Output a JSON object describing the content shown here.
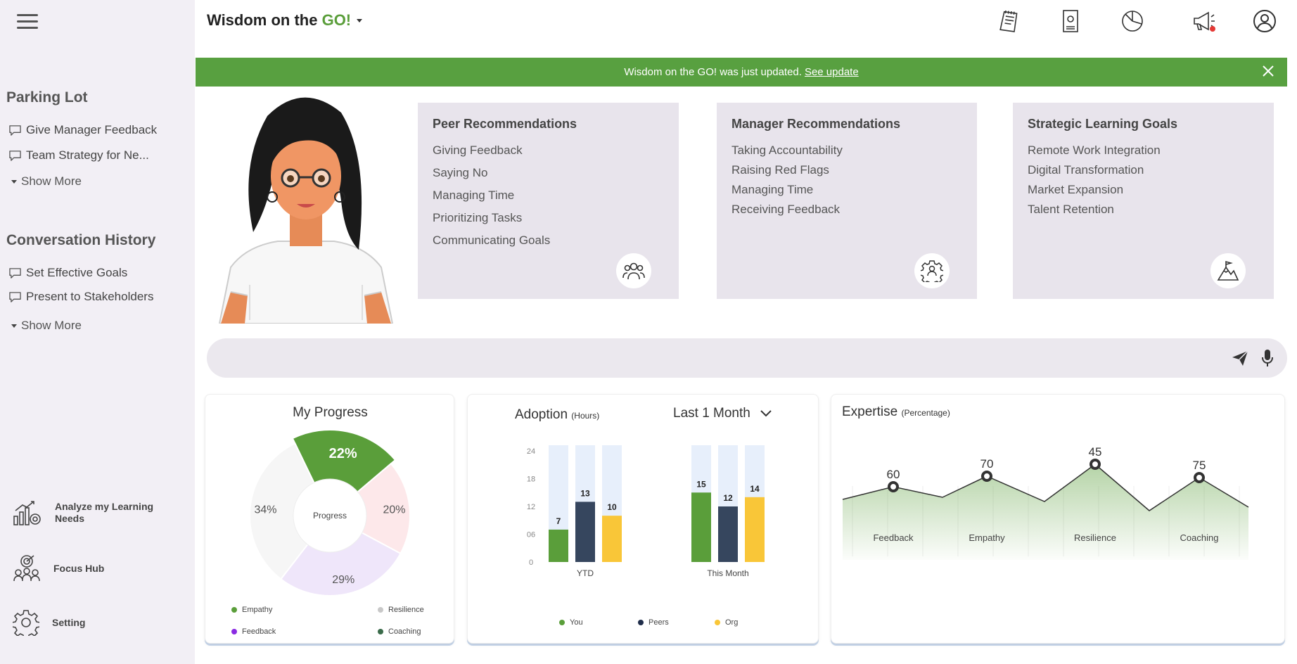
{
  "brand": {
    "prefix": "Wisdom on the ",
    "go": "GO!"
  },
  "banner": {
    "message": "Wisdom on the GO! was just updated.",
    "link": "See update"
  },
  "sidebar": {
    "parking_lot": {
      "title": "Parking Lot",
      "items": [
        "Give Manager Feedback",
        "Team Strategy for Ne..."
      ],
      "show_more": "Show More"
    },
    "history": {
      "title": "Conversation History",
      "items": [
        "Set Effective Goals",
        "Present to Stakeholders"
      ],
      "show_more": "Show More"
    },
    "tools": [
      {
        "label": "Analyze my  Learning Needs",
        "icon": "analyze-icon"
      },
      {
        "label": "Focus Hub",
        "icon": "focus-hub-icon"
      },
      {
        "label": "Setting",
        "icon": "gear-icon"
      }
    ]
  },
  "top_icons": [
    "notepad-icon",
    "document-icon",
    "pie-chart-icon",
    "megaphone-icon",
    "user-profile-icon"
  ],
  "cards": [
    {
      "title": "Peer Recommendations",
      "items": [
        "Giving Feedback",
        "Saying No",
        "Managing Time",
        "Prioritizing Tasks",
        "Communicating Goals"
      ],
      "icon": "peers-icon"
    },
    {
      "title": "Manager Recommendations",
      "items": [
        "Taking Accountability",
        "Raising Red Flags",
        "Managing Time",
        "Receiving Feedback"
      ],
      "icon": "manager-gear-icon"
    },
    {
      "title": "Strategic Learning Goals",
      "items": [
        "Remote Work Integration",
        "Digital Transformation",
        "Market Expansion",
        "Talent Retention"
      ],
      "icon": "mountain-flag-icon"
    }
  ],
  "prompt": {
    "placeholder": ""
  },
  "colors": {
    "green": "#5a9e3a",
    "navy": "#36465e",
    "yellow": "#f9c638",
    "banner": "#58a040",
    "sidebar": "#f2eff5",
    "card": "#e8e4ec"
  },
  "progress": {
    "title": "My Progress",
    "center_label": "Progress",
    "legend": [
      {
        "label": "Empathy",
        "color": "#5a9e3a"
      },
      {
        "label": "Resilience",
        "color": "#c8c8c8"
      },
      {
        "label": "Feedback",
        "color": "#8a2be2"
      },
      {
        "label": "Coaching",
        "color": "#3a6b4a"
      }
    ]
  },
  "adoption": {
    "title": "Adoption",
    "unit": "(Hours)",
    "period": "Last 1 Month",
    "legend": [
      {
        "label": "You",
        "color": "#5a9e3a"
      },
      {
        "label": "Peers",
        "color": "#1f2d4a"
      },
      {
        "label": "Org",
        "color": "#f9c638"
      }
    ]
  },
  "expertise": {
    "title": "Expertise",
    "unit": "(Percentage)"
  },
  "chart_data": [
    {
      "type": "pie",
      "title": "My Progress",
      "labels": [
        "22%",
        "20%",
        "29%",
        "34%"
      ],
      "values": [
        22,
        20,
        29,
        34
      ],
      "colors": [
        "#5a9e3a",
        "#fde8ea",
        "#efe6fa",
        "#f6f6f6"
      ]
    },
    {
      "type": "bar",
      "title": "Adoption",
      "ylabel": "(Hours)",
      "categories": [
        "YTD",
        "This Month"
      ],
      "ylim": [
        0,
        24
      ],
      "yticks": [
        "0",
        "06",
        "12",
        "18",
        "24"
      ],
      "series": [
        {
          "name": "You",
          "values": [
            7,
            15
          ],
          "color": "#5a9e3a"
        },
        {
          "name": "Peers",
          "values": [
            13,
            12
          ],
          "color": "#36465e"
        },
        {
          "name": "Org",
          "values": [
            10,
            14
          ],
          "color": "#f9c638"
        }
      ]
    },
    {
      "type": "area",
      "title": "Expertise",
      "ylabel": "(Percentage)",
      "categories": [
        "Feedback",
        "Empathy",
        "Resilience",
        "Coaching"
      ],
      "values": [
        60,
        70,
        45,
        75
      ]
    }
  ]
}
